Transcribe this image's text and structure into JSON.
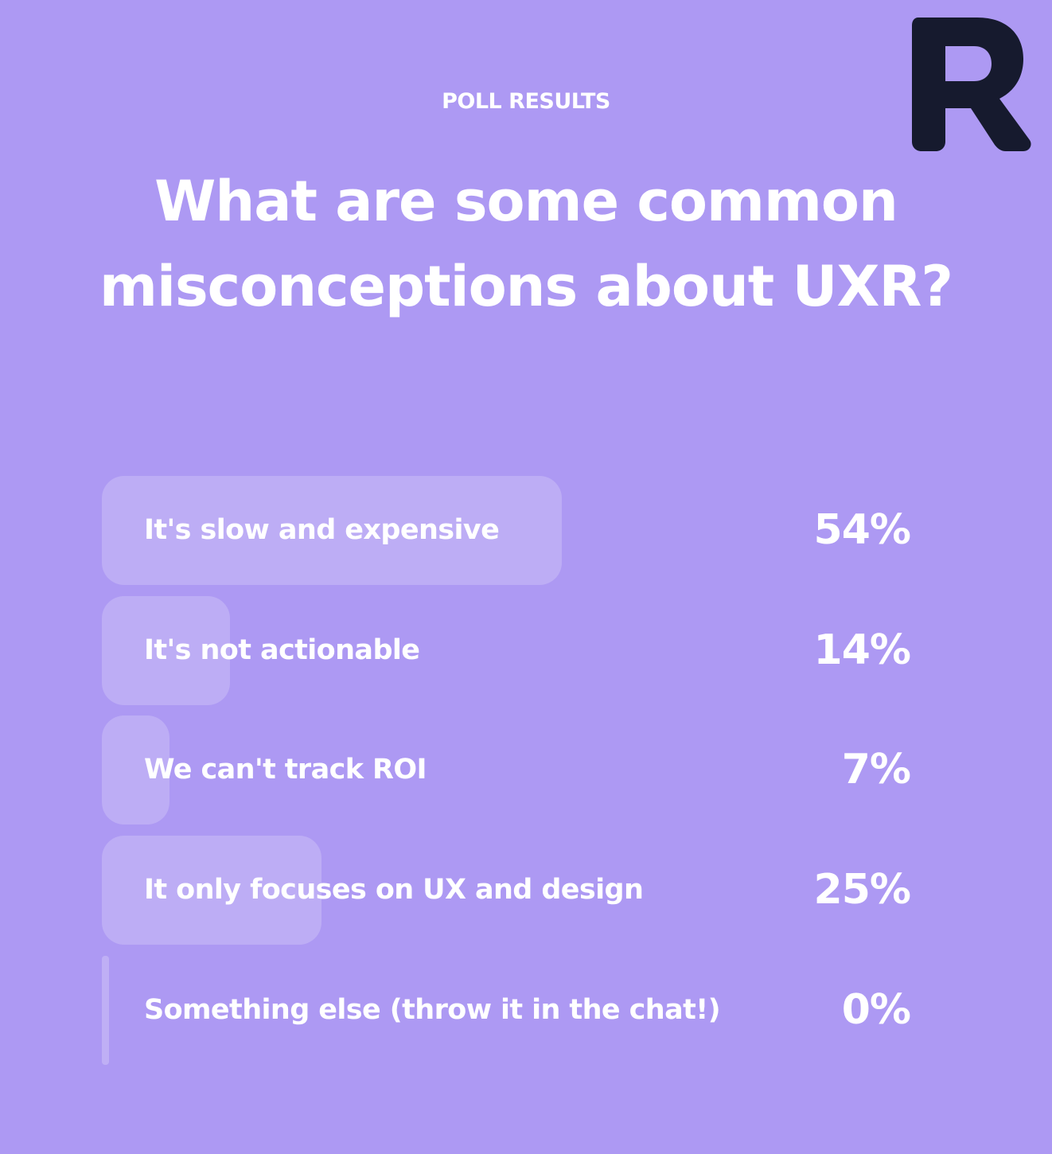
{
  "brand": {
    "logo_icon": "r-logo-icon",
    "logo_color": "#161a2e",
    "background_color": "#ad99f3"
  },
  "poll": {
    "eyebrow": "POLL RESULTS",
    "question": "What are some common misconceptions about UXR?",
    "options": [
      {
        "label": "It's slow and expensive",
        "percent": "54%",
        "value": 54
      },
      {
        "label": "It's not actionable",
        "percent": "14%",
        "value": 14
      },
      {
        "label": "We can't track ROI",
        "percent": "7%",
        "value": 7
      },
      {
        "label": "It only focuses on UX and design",
        "percent": "25%",
        "value": 25
      },
      {
        "label": "Something else (throw it in the chat!)",
        "percent": "0%",
        "value": 0
      }
    ]
  }
}
